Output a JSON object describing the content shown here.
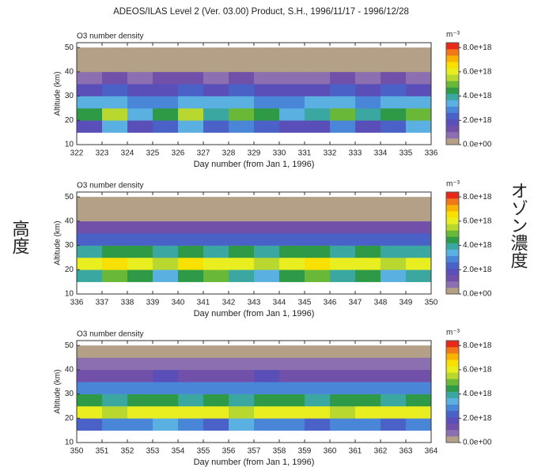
{
  "title": "ADEOS/ILAS Level 2 (Ver. 03.00) Product, S.H., 1996/11/17 - 1996/12/28",
  "side_labels": {
    "left": "高度",
    "right": "オゾン濃度"
  },
  "chart_data": [
    {
      "type": "heatmap",
      "title": "O3 number density",
      "x_label": "Day number (from Jan 1, 1996)",
      "y_label": "Altitude (km)",
      "xlim": [
        322,
        336
      ],
      "xticks": [
        322,
        323,
        324,
        325,
        326,
        327,
        328,
        329,
        330,
        331,
        332,
        333,
        334,
        335,
        336
      ],
      "ylim": [
        10,
        52
      ],
      "yticks": [
        10,
        20,
        30,
        40,
        50
      ],
      "x_bins": [
        322,
        323,
        324,
        325,
        326,
        327,
        328,
        329,
        330,
        331,
        332,
        333,
        334,
        335,
        336
      ],
      "y_bins": [
        15,
        20,
        25,
        30,
        35,
        40,
        45,
        50
      ],
      "values": [
        [
          2e+18,
          3.5e+18,
          1.8e+18,
          2.5e+18,
          3.5e+18,
          2.2e+18,
          3e+18,
          2.5e+18,
          1.8e+18,
          2e+18,
          3e+18,
          2e+18,
          2.5e+18,
          3.5e+18
        ],
        [
          4.5e+18,
          5.5e+18,
          3.5e+18,
          4.5e+18,
          5.5e+18,
          4e+18,
          5e+18,
          4.5e+18,
          3.5e+18,
          4e+18,
          5e+18,
          4e+18,
          4.5e+18,
          5e+18
        ],
        [
          3.2e+18,
          3.5e+18,
          3e+18,
          3e+18,
          3.5e+18,
          3.2e+18,
          3.4e+18,
          3e+18,
          3e+18,
          3.2e+18,
          3.3e+18,
          3e+18,
          3.2e+18,
          3.4e+18
        ],
        [
          2e+18,
          2.2e+18,
          1.8e+18,
          2e+18,
          2.2e+18,
          2e+18,
          2.1e+18,
          1.9e+18,
          2e+18,
          2e+18,
          2.2e+18,
          2e+18,
          2.1e+18,
          2e+18
        ],
        [
          1e+18,
          1.2e+18,
          9e+17,
          1.1e+18,
          1.2e+18,
          1e+18,
          1.1e+18,
          1e+18,
          9e+17,
          1e+18,
          1.2e+18,
          1e+18,
          1.1e+18,
          1e+18
        ],
        [
          3e+17,
          4e+17,
          3e+17,
          3e+17,
          4e+17,
          3e+17,
          3e+17,
          3e+17,
          3e+17,
          3e+17,
          4e+17,
          3e+17,
          3e+17,
          3e+17
        ],
        [
          1e+17,
          1e+17,
          1e+17,
          1e+17,
          1e+17,
          1e+17,
          1e+17,
          1e+17,
          1e+17,
          1e+17,
          1e+17,
          1e+17,
          1e+17,
          1e+17
        ]
      ],
      "zlim": [
        0,
        8.4e+18
      ],
      "colorbar_label": "m⁻³",
      "zticks": [
        {
          "value": 0,
          "label": "0.0e+00"
        },
        {
          "value": 2e+18,
          "label": "2.0e+18"
        },
        {
          "value": 4e+18,
          "label": "4.0e+18"
        },
        {
          "value": 6e+18,
          "label": "6.0e+18"
        },
        {
          "value": 8e+18,
          "label": "8.0e+18"
        }
      ],
      "colors": [
        "#b3a087",
        "#8c6fb0",
        "#7050a8",
        "#5a4fb8",
        "#4a62c8",
        "#4a86d8",
        "#5ab0e0",
        "#3aa8a0",
        "#2e9a48",
        "#6ab838",
        "#b8d830",
        "#e8ee20",
        "#f8e000",
        "#f8b400",
        "#f07818",
        "#e82818"
      ]
    },
    {
      "type": "heatmap",
      "title": "O3 number density",
      "x_label": "Day number (from Jan 1, 1996)",
      "y_label": "Altitude (km)",
      "xlim": [
        336,
        350
      ],
      "xticks": [
        336,
        337,
        338,
        339,
        340,
        341,
        342,
        343,
        344,
        345,
        346,
        347,
        348,
        349,
        350
      ],
      "ylim": [
        10,
        52
      ],
      "yticks": [
        10,
        20,
        30,
        40,
        50
      ],
      "x_bins": [
        336,
        337,
        338,
        339,
        340,
        341,
        342,
        343,
        344,
        345,
        346,
        347,
        348,
        349,
        350
      ],
      "y_bins": [
        15,
        20,
        25,
        30,
        35,
        40,
        45,
        50
      ],
      "values": [
        [
          4e+18,
          5e+18,
          4.5e+18,
          3.5e+18,
          4.5e+18,
          5e+18,
          4e+18,
          3.5e+18,
          4.5e+18,
          5e+18,
          4e+18,
          4.5e+18,
          3.5e+18,
          4e+18
        ],
        [
          6e+18,
          6.5e+18,
          6.2e+18,
          5.5e+18,
          6.5e+18,
          6e+18,
          5.8e+18,
          5.5e+18,
          6e+18,
          6.5e+18,
          6e+18,
          6.2e+18,
          5.5e+18,
          6e+18
        ],
        [
          4e+18,
          4.2e+18,
          4.5e+18,
          3.8e+18,
          4.2e+18,
          4e+18,
          4.3e+18,
          4e+18,
          4.5e+18,
          4.2e+18,
          4e+18,
          4.3e+18,
          3.8e+18,
          4e+18
        ],
        [
          2.5e+18,
          2.4e+18,
          2.6e+18,
          2.3e+18,
          2.5e+18,
          2.4e+18,
          2.6e+18,
          2.5e+18,
          2.4e+18,
          2.6e+18,
          2.5e+18,
          2.4e+18,
          2.3e+18,
          2.5e+18
        ],
        [
          1.3e+18,
          1.2e+18,
          1.4e+18,
          1.2e+18,
          1.3e+18,
          1.3e+18,
          1.4e+18,
          1.2e+18,
          1.3e+18,
          1.4e+18,
          1.3e+18,
          1.2e+18,
          1.2e+18,
          1.3e+18
        ],
        [
          4e+17,
          4e+17,
          4e+17,
          4e+17,
          4e+17,
          4e+17,
          4e+17,
          4e+17,
          4e+17,
          4e+17,
          4e+17,
          4e+17,
          4e+17,
          4e+17
        ],
        [
          1e+17,
          1e+17,
          1e+17,
          1e+17,
          1e+17,
          1e+17,
          1e+17,
          1e+17,
          1e+17,
          1e+17,
          1e+17,
          1e+17,
          1e+17,
          1e+17
        ]
      ],
      "zlim": [
        0,
        8.4e+18
      ],
      "colorbar_label": "m⁻³",
      "zticks": [
        {
          "value": 0,
          "label": "0.0e+00"
        },
        {
          "value": 2e+18,
          "label": "2.0e+18"
        },
        {
          "value": 4e+18,
          "label": "4.0e+18"
        },
        {
          "value": 6e+18,
          "label": "6.0e+18"
        },
        {
          "value": 8e+18,
          "label": "8.0e+18"
        }
      ],
      "colors": [
        "#b3a087",
        "#8c6fb0",
        "#7050a8",
        "#5a4fb8",
        "#4a62c8",
        "#4a86d8",
        "#5ab0e0",
        "#3aa8a0",
        "#2e9a48",
        "#6ab838",
        "#b8d830",
        "#e8ee20",
        "#f8e000",
        "#f8b400",
        "#f07818",
        "#e82818"
      ]
    },
    {
      "type": "heatmap",
      "title": "O3 number density",
      "x_label": "Day number (from Jan 1, 1996)",
      "y_label": "Altitude (km)",
      "xlim": [
        350,
        364
      ],
      "xticks": [
        350,
        351,
        352,
        353,
        354,
        355,
        356,
        357,
        358,
        359,
        360,
        361,
        362,
        363,
        364
      ],
      "ylim": [
        10,
        52
      ],
      "yticks": [
        10,
        20,
        30,
        40,
        50
      ],
      "x_bins": [
        350,
        351,
        352,
        353,
        354,
        355,
        356,
        357,
        358,
        359,
        360,
        361,
        362,
        363,
        364
      ],
      "y_bins": [
        15,
        20,
        25,
        30,
        35,
        40,
        45,
        50
      ],
      "values": [
        [
          2.5e+18,
          3e+18,
          2.8e+18,
          3.5e+18,
          3e+18,
          2.5e+18,
          3.2e+18,
          2.8e+18,
          3e+18,
          2.5e+18,
          3e+18,
          2.8e+18,
          2.5e+18,
          3e+18
        ],
        [
          6e+18,
          5.5e+18,
          6.2e+18,
          6e+18,
          5.8e+18,
          6e+18,
          5.5e+18,
          6.2e+18,
          6e+18,
          5.8e+18,
          5.5e+18,
          6e+18,
          5.8e+18,
          6e+18
        ],
        [
          4.2e+18,
          4e+18,
          4.5e+18,
          4.2e+18,
          4e+18,
          4.3e+18,
          4e+18,
          4.5e+18,
          4.2e+18,
          4e+18,
          4.3e+18,
          4.2e+18,
          4e+18,
          4.2e+18
        ],
        [
          2.8e+18,
          2.7e+18,
          2.8e+18,
          2.9e+18,
          2.8e+18,
          2.7e+18,
          2.8e+18,
          2.9e+18,
          2.8e+18,
          2.7e+18,
          2.8e+18,
          2.8e+18,
          2.7e+18,
          2.8e+18
        ],
        [
          1.5e+18,
          1.4e+18,
          1.5e+18,
          1.6e+18,
          1.5e+18,
          1.4e+18,
          1.5e+18,
          1.6e+18,
          1.5e+18,
          1.4e+18,
          1.5e+18,
          1.5e+18,
          1.4e+18,
          1.5e+18
        ],
        [
          6e+17,
          6e+17,
          6e+17,
          6e+17,
          6e+17,
          6e+17,
          6e+17,
          6e+17,
          6e+17,
          6e+17,
          6e+17,
          6e+17,
          6e+17,
          6e+17
        ],
        [
          1e+17,
          1e+17,
          1e+17,
          1e+17,
          1e+17,
          1e+17,
          1e+17,
          1e+17,
          1e+17,
          1e+17,
          1e+17,
          1e+17,
          1e+17,
          1e+17
        ]
      ],
      "zlim": [
        0,
        8.4e+18
      ],
      "colorbar_label": "m⁻³",
      "zticks": [
        {
          "value": 0,
          "label": "0.0e+00"
        },
        {
          "value": 2e+18,
          "label": "2.0e+18"
        },
        {
          "value": 4e+18,
          "label": "4.0e+18"
        },
        {
          "value": 6e+18,
          "label": "6.0e+18"
        },
        {
          "value": 8e+18,
          "label": "8.0e+18"
        }
      ],
      "colors": [
        "#b3a087",
        "#8c6fb0",
        "#7050a8",
        "#5a4fb8",
        "#4a62c8",
        "#4a86d8",
        "#5ab0e0",
        "#3aa8a0",
        "#2e9a48",
        "#6ab838",
        "#b8d830",
        "#e8ee20",
        "#f8e000",
        "#f8b400",
        "#f07818",
        "#e82818"
      ]
    }
  ]
}
